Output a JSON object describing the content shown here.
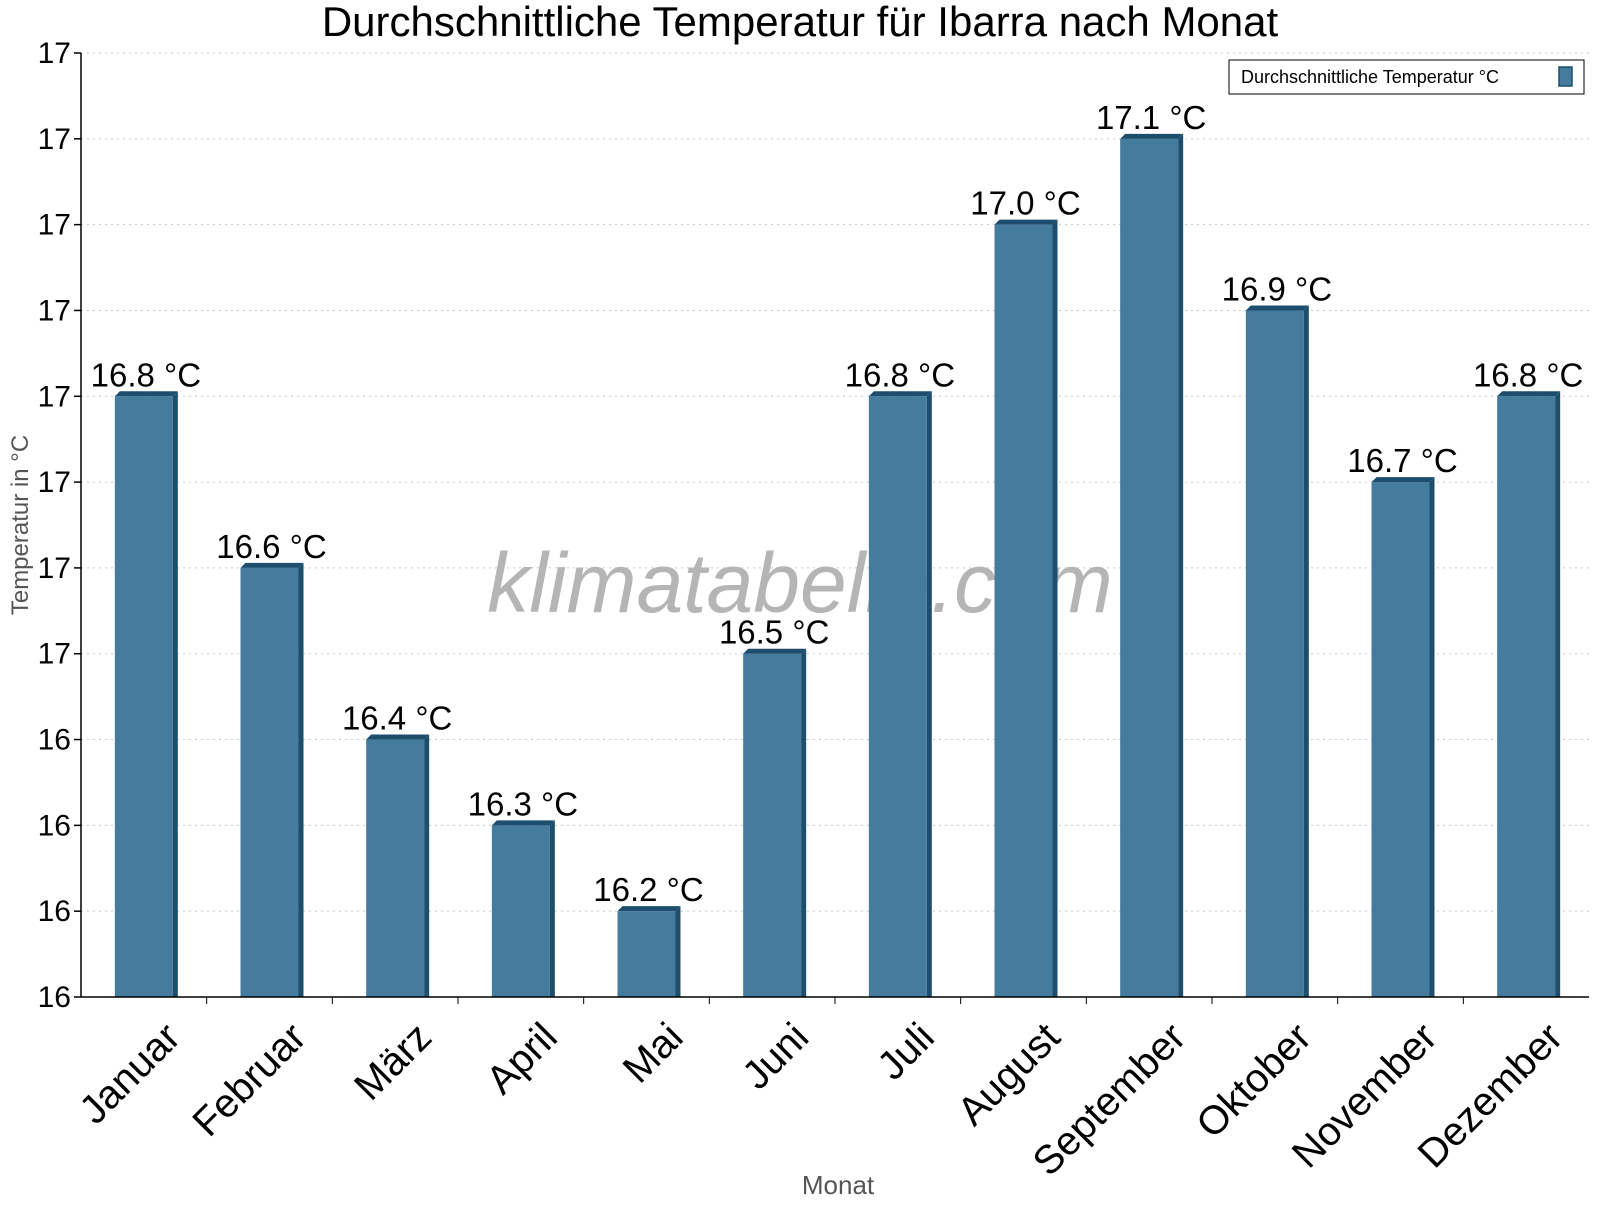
{
  "chart_data": {
    "type": "bar",
    "title": "Durchschnittliche Temperatur für Ibarra nach Monat",
    "xlabel": "Monat",
    "ylabel": "Temperatur in °C",
    "categories": [
      "Januar",
      "Februar",
      "März",
      "April",
      "Mai",
      "Juni",
      "Juli",
      "August",
      "September",
      "Oktober",
      "November",
      "Dezember"
    ],
    "series": [
      {
        "name": "Durchschnittliche Temperatur °C",
        "values": [
          16.8,
          16.6,
          16.4,
          16.3,
          16.2,
          16.5,
          16.8,
          17.0,
          17.1,
          16.9,
          16.7,
          16.8
        ],
        "labels": [
          "16.8 °C",
          "16.6 °C",
          "16.4 °C",
          "16.3 °C",
          "16.2 °C",
          "16.5 °C",
          "16.8 °C",
          "17.0 °C",
          "17.1 °C",
          "16.9 °C",
          "16.7 °C",
          "16.8 °C"
        ]
      }
    ],
    "ylim": [
      16.1,
      17.2
    ],
    "yticks": [
      16.1,
      16.2,
      16.3,
      16.4,
      16.5,
      16.6,
      16.7,
      16.8,
      16.9,
      17.0,
      17.1,
      17.2
    ],
    "ytick_labels": [
      "16",
      "16",
      "16",
      "16",
      "17",
      "17",
      "17",
      "17",
      "17",
      "17",
      "17",
      "17"
    ],
    "grid": true,
    "legend_position": "top-right",
    "watermark": "klimatabelle.com",
    "colors": {
      "bar_front": "#457b9d",
      "bar_side": "#1d4e6e",
      "grid": "#c8c8c8",
      "axis": "#000000",
      "axis_label": "#555555",
      "watermark": "#b5b5b5"
    }
  }
}
